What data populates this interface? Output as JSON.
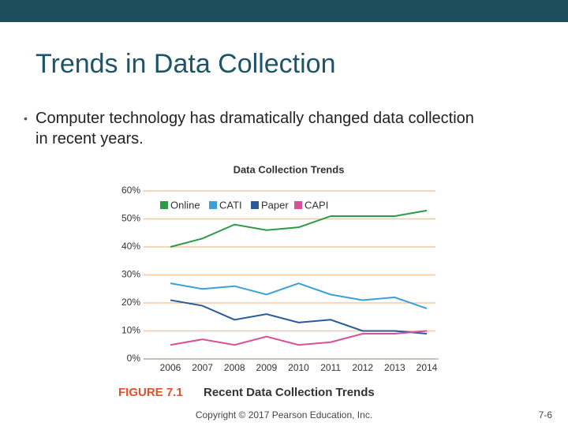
{
  "slide": {
    "title": "Trends in Data Collection",
    "bullet": "Computer technology has dramatically changed data collection in recent years.",
    "figure": {
      "label": "FIGURE 7.1",
      "title": "Recent Data Collection Trends"
    },
    "footer": "Copyright © 2017 Pearson Education, Inc.",
    "page": "7-6"
  },
  "chart_data": {
    "type": "line",
    "title": "Data Collection Trends",
    "categories": [
      "2006",
      "2007",
      "2008",
      "2009",
      "2010",
      "2011",
      "2012",
      "2013",
      "2014"
    ],
    "series": [
      {
        "name": "Online",
        "color": "#2e9a47",
        "values": [
          40,
          43,
          48,
          46,
          47,
          51,
          51,
          51,
          53
        ]
      },
      {
        "name": "CATI",
        "color": "#3aa0d8",
        "values": [
          27,
          25,
          26,
          23,
          27,
          23,
          21,
          22,
          18
        ]
      },
      {
        "name": "Paper",
        "color": "#2a5a9a",
        "values": [
          21,
          19,
          14,
          16,
          13,
          14,
          10,
          10,
          9
        ]
      },
      {
        "name": "CAPI",
        "color": "#d94f9a",
        "values": [
          5,
          7,
          5,
          8,
          5,
          6,
          9,
          9,
          10
        ]
      }
    ],
    "ylim": [
      0,
      60
    ],
    "yticks": [
      {
        "value": 0,
        "label": "0%"
      },
      {
        "value": 10,
        "label": "10%"
      },
      {
        "value": 20,
        "label": "20%"
      },
      {
        "value": 30,
        "label": "30%"
      },
      {
        "value": 40,
        "label": "40%"
      },
      {
        "value": 50,
        "label": "50%"
      },
      {
        "value": 60,
        "label": "60%"
      }
    ],
    "grid": true
  }
}
